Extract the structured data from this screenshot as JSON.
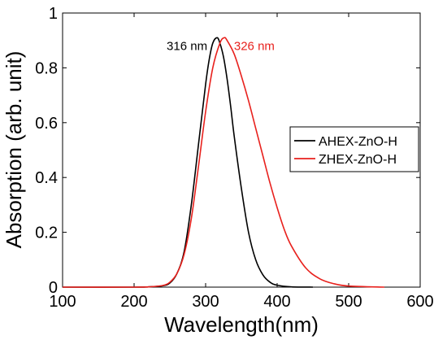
{
  "chart_data": {
    "type": "line",
    "xlabel": "Wavelength(nm)",
    "ylabel": "Absorption (arb. unit)",
    "xlim": [
      100,
      600
    ],
    "ylim": [
      0,
      1
    ],
    "x_ticks": [
      "100",
      "200",
      "300",
      "400",
      "500",
      "600"
    ],
    "y_ticks": [
      "0",
      "0.2",
      "0.4",
      "0.6",
      "0.8",
      "1"
    ],
    "grid": false,
    "legend_position": "right",
    "series": [
      {
        "name": "AHEX-ZnO-H",
        "color": "#000000",
        "x": [
          100,
          200,
          220,
          240,
          250,
          260,
          270,
          280,
          290,
          300,
          305,
          310,
          316,
          320,
          325,
          330,
          335,
          340,
          350,
          360,
          370,
          380,
          390,
          400,
          420,
          450
        ],
        "y": [
          0,
          0,
          0.001,
          0.005,
          0.015,
          0.05,
          0.13,
          0.3,
          0.52,
          0.74,
          0.83,
          0.89,
          0.91,
          0.89,
          0.84,
          0.76,
          0.66,
          0.55,
          0.36,
          0.2,
          0.1,
          0.045,
          0.018,
          0.007,
          0.001,
          0
        ]
      },
      {
        "name": "ZHEX-ZnO-H",
        "color": "#e8211d",
        "x": [
          100,
          200,
          220,
          240,
          250,
          260,
          270,
          280,
          290,
          300,
          310,
          320,
          326,
          330,
          340,
          350,
          360,
          370,
          380,
          390,
          400,
          410,
          420,
          440,
          460,
          480,
          500,
          550
        ],
        "y": [
          0,
          0,
          0.001,
          0.006,
          0.018,
          0.05,
          0.12,
          0.25,
          0.44,
          0.64,
          0.8,
          0.89,
          0.91,
          0.9,
          0.85,
          0.77,
          0.68,
          0.58,
          0.48,
          0.38,
          0.29,
          0.21,
          0.15,
          0.07,
          0.03,
          0.012,
          0.004,
          0
        ]
      }
    ],
    "annotations": [
      {
        "text": "316 nm",
        "x": 316,
        "y": 0.91,
        "color": "#000000"
      },
      {
        "text": "326 nm",
        "x": 326,
        "y": 0.91,
        "color": "#e8211d"
      }
    ]
  }
}
